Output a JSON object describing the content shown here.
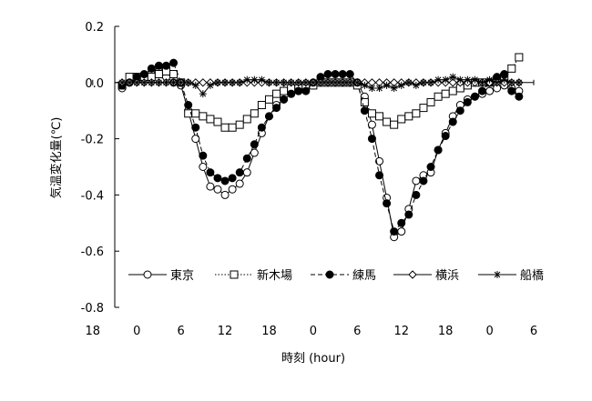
{
  "chart_data": {
    "type": "line",
    "title": "",
    "xlabel": "時刻 (hour)",
    "ylabel": "気温変化量(℃)",
    "xlim": [
      -3,
      54
    ],
    "ylim": [
      -0.8,
      0.2
    ],
    "y_ticks": [
      0.2,
      0.0,
      -0.2,
      -0.4,
      -0.6,
      -0.8
    ],
    "y_tick_labels": [
      "0.2",
      "0.0",
      "-0.2",
      "-0.4",
      "-0.6",
      "-0.8"
    ],
    "x_ticks": [
      -6,
      0,
      6,
      12,
      18,
      24,
      30,
      36,
      42,
      48,
      54
    ],
    "x_tick_labels": [
      "18",
      "0",
      "6",
      "12",
      "18",
      "0",
      "6",
      "12",
      "18",
      "0",
      "6"
    ],
    "grid": false,
    "legend_position": "bottom-inside",
    "series": [
      {
        "name": "東京",
        "marker": "open-circle",
        "line": "solid",
        "values": [
          [
            -2,
            -0.02
          ],
          [
            -1,
            0.0
          ],
          [
            0,
            0.01
          ],
          [
            1,
            0.02
          ],
          [
            2,
            0.03
          ],
          [
            3,
            0.04
          ],
          [
            4,
            0.02
          ],
          [
            5,
            0.0
          ],
          [
            6,
            -0.01
          ],
          [
            7,
            -0.1
          ],
          [
            8,
            -0.2
          ],
          [
            9,
            -0.3
          ],
          [
            10,
            -0.37
          ],
          [
            11,
            -0.38
          ],
          [
            12,
            -0.4
          ],
          [
            13,
            -0.38
          ],
          [
            14,
            -0.36
          ],
          [
            15,
            -0.32
          ],
          [
            16,
            -0.25
          ],
          [
            17,
            -0.18
          ],
          [
            18,
            -0.12
          ],
          [
            19,
            -0.08
          ],
          [
            20,
            -0.06
          ],
          [
            21,
            -0.04
          ],
          [
            22,
            -0.03
          ],
          [
            23,
            -0.02
          ],
          [
            24,
            -0.01
          ],
          [
            25,
            0.0
          ],
          [
            26,
            0.0
          ],
          [
            27,
            0.0
          ],
          [
            28,
            0.0
          ],
          [
            29,
            0.0
          ],
          [
            30,
            0.0
          ],
          [
            31,
            -0.05
          ],
          [
            32,
            -0.15
          ],
          [
            33,
            -0.28
          ],
          [
            34,
            -0.41
          ],
          [
            35,
            -0.55
          ],
          [
            36,
            -0.53
          ],
          [
            37,
            -0.45
          ],
          [
            38,
            -0.35
          ],
          [
            39,
            -0.33
          ],
          [
            40,
            -0.32
          ],
          [
            41,
            -0.24
          ],
          [
            42,
            -0.18
          ],
          [
            43,
            -0.12
          ],
          [
            44,
            -0.08
          ],
          [
            45,
            -0.06
          ],
          [
            46,
            -0.05
          ],
          [
            47,
            -0.04
          ],
          [
            48,
            -0.03
          ],
          [
            49,
            -0.02
          ],
          [
            50,
            -0.01
          ],
          [
            51,
            -0.02
          ],
          [
            52,
            -0.03
          ]
        ]
      },
      {
        "name": "新木場",
        "marker": "open-square",
        "line": "dotted",
        "values": [
          [
            -2,
            -0.01
          ],
          [
            -1,
            0.02
          ],
          [
            0,
            0.02
          ],
          [
            1,
            0.02
          ],
          [
            2,
            0.02
          ],
          [
            3,
            0.03
          ],
          [
            4,
            0.04
          ],
          [
            5,
            0.03
          ],
          [
            6,
            0.0
          ],
          [
            7,
            -0.11
          ],
          [
            8,
            -0.11
          ],
          [
            9,
            -0.12
          ],
          [
            10,
            -0.13
          ],
          [
            11,
            -0.14
          ],
          [
            12,
            -0.16
          ],
          [
            13,
            -0.16
          ],
          [
            14,
            -0.15
          ],
          [
            15,
            -0.13
          ],
          [
            16,
            -0.11
          ],
          [
            17,
            -0.08
          ],
          [
            18,
            -0.06
          ],
          [
            19,
            -0.04
          ],
          [
            20,
            -0.03
          ],
          [
            21,
            -0.02
          ],
          [
            22,
            -0.02
          ],
          [
            23,
            -0.01
          ],
          [
            24,
            -0.01
          ],
          [
            25,
            0.0
          ],
          [
            26,
            0.0
          ],
          [
            27,
            0.0
          ],
          [
            28,
            0.0
          ],
          [
            29,
            0.0
          ],
          [
            30,
            -0.01
          ],
          [
            31,
            -0.07
          ],
          [
            32,
            -0.11
          ],
          [
            33,
            -0.12
          ],
          [
            34,
            -0.14
          ],
          [
            35,
            -0.15
          ],
          [
            36,
            -0.13
          ],
          [
            37,
            -0.12
          ],
          [
            38,
            -0.11
          ],
          [
            39,
            -0.09
          ],
          [
            40,
            -0.07
          ],
          [
            41,
            -0.05
          ],
          [
            42,
            -0.04
          ],
          [
            43,
            -0.03
          ],
          [
            44,
            -0.02
          ],
          [
            45,
            -0.01
          ],
          [
            46,
            0.0
          ],
          [
            47,
            0.0
          ],
          [
            48,
            0.0
          ],
          [
            49,
            0.01
          ],
          [
            50,
            0.02
          ],
          [
            51,
            0.05
          ],
          [
            52,
            0.09
          ]
        ]
      },
      {
        "name": "練馬",
        "marker": "filled-circle",
        "line": "dashed",
        "values": [
          [
            -2,
            -0.01
          ],
          [
            -1,
            0.0
          ],
          [
            0,
            0.02
          ],
          [
            1,
            0.03
          ],
          [
            2,
            0.05
          ],
          [
            3,
            0.06
          ],
          [
            4,
            0.06
          ],
          [
            5,
            0.07
          ],
          [
            6,
            0.0
          ],
          [
            7,
            -0.08
          ],
          [
            8,
            -0.16
          ],
          [
            9,
            -0.26
          ],
          [
            10,
            -0.32
          ],
          [
            11,
            -0.34
          ],
          [
            12,
            -0.35
          ],
          [
            13,
            -0.34
          ],
          [
            14,
            -0.32
          ],
          [
            15,
            -0.27
          ],
          [
            16,
            -0.22
          ],
          [
            17,
            -0.16
          ],
          [
            18,
            -0.12
          ],
          [
            19,
            -0.09
          ],
          [
            20,
            -0.06
          ],
          [
            21,
            -0.04
          ],
          [
            22,
            -0.03
          ],
          [
            23,
            -0.03
          ],
          [
            24,
            0.0
          ],
          [
            25,
            0.02
          ],
          [
            26,
            0.03
          ],
          [
            27,
            0.03
          ],
          [
            28,
            0.03
          ],
          [
            29,
            0.03
          ],
          [
            30,
            0.0
          ],
          [
            31,
            -0.1
          ],
          [
            32,
            -0.2
          ],
          [
            33,
            -0.33
          ],
          [
            34,
            -0.43
          ],
          [
            35,
            -0.53
          ],
          [
            36,
            -0.5
          ],
          [
            37,
            -0.47
          ],
          [
            38,
            -0.4
          ],
          [
            39,
            -0.35
          ],
          [
            40,
            -0.3
          ],
          [
            41,
            -0.24
          ],
          [
            42,
            -0.19
          ],
          [
            43,
            -0.14
          ],
          [
            44,
            -0.1
          ],
          [
            45,
            -0.07
          ],
          [
            46,
            -0.05
          ],
          [
            47,
            -0.03
          ],
          [
            48,
            0.0
          ],
          [
            49,
            0.02
          ],
          [
            50,
            0.03
          ],
          [
            51,
            -0.03
          ],
          [
            52,
            -0.05
          ]
        ]
      },
      {
        "name": "横浜",
        "marker": "open-diamond",
        "line": "solid",
        "values": [
          [
            -2,
            0.0
          ],
          [
            -1,
            0.0
          ],
          [
            0,
            0.0
          ],
          [
            1,
            0.0
          ],
          [
            2,
            0.0
          ],
          [
            3,
            0.0
          ],
          [
            4,
            0.0
          ],
          [
            5,
            0.0
          ],
          [
            6,
            0.0
          ],
          [
            7,
            0.0
          ],
          [
            8,
            0.0
          ],
          [
            9,
            0.0
          ],
          [
            10,
            0.0
          ],
          [
            11,
            0.0
          ],
          [
            12,
            0.0
          ],
          [
            13,
            0.0
          ],
          [
            14,
            0.0
          ],
          [
            15,
            0.0
          ],
          [
            16,
            0.0
          ],
          [
            17,
            0.0
          ],
          [
            18,
            0.0
          ],
          [
            19,
            0.0
          ],
          [
            20,
            0.0
          ],
          [
            21,
            0.0
          ],
          [
            22,
            0.0
          ],
          [
            23,
            0.0
          ],
          [
            24,
            0.0
          ],
          [
            25,
            0.0
          ],
          [
            26,
            0.0
          ],
          [
            27,
            0.0
          ],
          [
            28,
            0.0
          ],
          [
            29,
            0.0
          ],
          [
            30,
            0.0
          ],
          [
            31,
            0.0
          ],
          [
            32,
            0.0
          ],
          [
            33,
            0.0
          ],
          [
            34,
            0.0
          ],
          [
            35,
            0.0
          ],
          [
            36,
            0.0
          ],
          [
            37,
            0.0
          ],
          [
            38,
            0.0
          ],
          [
            39,
            0.0
          ],
          [
            40,
            0.0
          ],
          [
            41,
            0.0
          ],
          [
            42,
            0.0
          ],
          [
            43,
            0.0
          ],
          [
            44,
            0.0
          ],
          [
            45,
            0.0
          ],
          [
            46,
            0.0
          ],
          [
            47,
            0.0
          ],
          [
            48,
            0.0
          ],
          [
            49,
            0.0
          ],
          [
            50,
            0.0
          ],
          [
            51,
            0.0
          ],
          [
            52,
            0.0
          ]
        ]
      },
      {
        "name": "船橋",
        "marker": "asterisk",
        "line": "solid",
        "values": [
          [
            -2,
            0.0
          ],
          [
            -1,
            0.0
          ],
          [
            0,
            0.0
          ],
          [
            1,
            0.0
          ],
          [
            2,
            0.0
          ],
          [
            3,
            0.0
          ],
          [
            4,
            0.0
          ],
          [
            5,
            0.0
          ],
          [
            6,
            0.0
          ],
          [
            7,
            0.0
          ],
          [
            8,
            -0.01
          ],
          [
            9,
            -0.04
          ],
          [
            10,
            -0.01
          ],
          [
            11,
            0.0
          ],
          [
            12,
            0.0
          ],
          [
            13,
            0.0
          ],
          [
            14,
            0.0
          ],
          [
            15,
            0.01
          ],
          [
            16,
            0.01
          ],
          [
            17,
            0.01
          ],
          [
            18,
            0.0
          ],
          [
            19,
            0.0
          ],
          [
            20,
            0.0
          ],
          [
            21,
            0.0
          ],
          [
            22,
            0.0
          ],
          [
            23,
            0.0
          ],
          [
            24,
            0.0
          ],
          [
            25,
            0.0
          ],
          [
            26,
            0.0
          ],
          [
            27,
            0.0
          ],
          [
            28,
            0.0
          ],
          [
            29,
            0.0
          ],
          [
            30,
            0.0
          ],
          [
            31,
            -0.01
          ],
          [
            32,
            -0.02
          ],
          [
            33,
            -0.02
          ],
          [
            34,
            -0.01
          ],
          [
            35,
            -0.02
          ],
          [
            36,
            -0.01
          ],
          [
            37,
            0.0
          ],
          [
            38,
            -0.01
          ],
          [
            39,
            0.0
          ],
          [
            40,
            0.0
          ],
          [
            41,
            0.01
          ],
          [
            42,
            0.01
          ],
          [
            43,
            0.02
          ],
          [
            44,
            0.01
          ],
          [
            45,
            0.01
          ],
          [
            46,
            0.01
          ],
          [
            47,
            0.0
          ],
          [
            48,
            0.01
          ],
          [
            49,
            0.0
          ],
          [
            50,
            0.01
          ],
          [
            51,
            0.0
          ],
          [
            52,
            0.0
          ]
        ]
      }
    ]
  }
}
